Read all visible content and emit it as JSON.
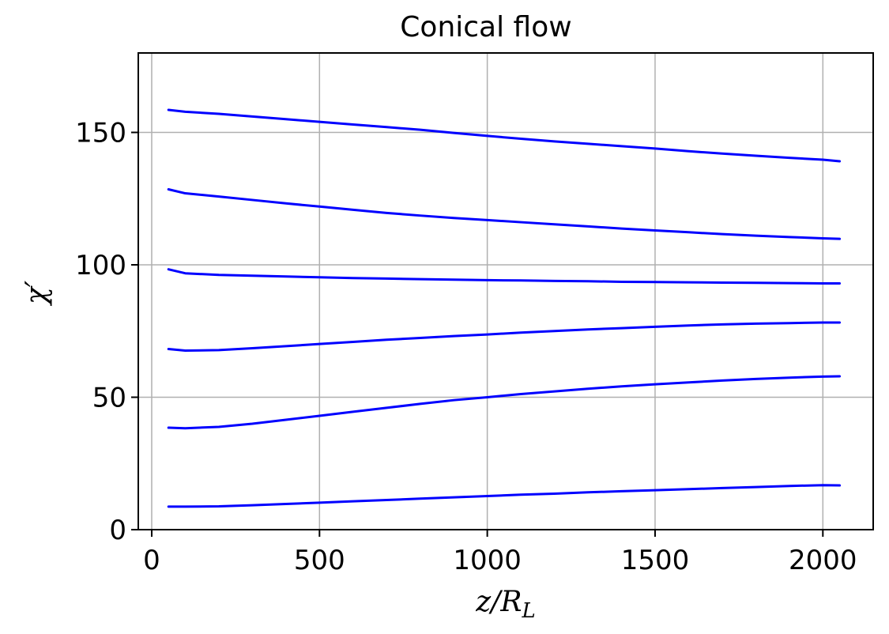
{
  "chart_data": {
    "type": "line",
    "title": "Conical flow",
    "xlabel": {
      "base": "z/R",
      "sub": "L"
    },
    "ylabel": "χ′",
    "xlim": [
      -40,
      2150
    ],
    "ylim": [
      0,
      180
    ],
    "xticks": [
      "0",
      "500",
      "1000",
      "1500",
      "2000"
    ],
    "yticks": [
      "0",
      "50",
      "100",
      "150"
    ],
    "grid": true,
    "line_color": "#0000ff",
    "series": [
      {
        "x": [
          50,
          100,
          200,
          300,
          400,
          500,
          600,
          700,
          800,
          900,
          1000,
          1100,
          1200,
          1300,
          1400,
          1500,
          1600,
          1700,
          1800,
          1900,
          2000,
          2050
        ],
        "y": [
          158.5,
          157.8,
          157.0,
          156.0,
          155.0,
          154.0,
          153.0,
          152.0,
          151.0,
          149.8,
          148.7,
          147.6,
          146.6,
          145.7,
          144.8,
          143.9,
          142.9,
          142.0,
          141.2,
          140.4,
          139.7,
          139.1
        ]
      },
      {
        "x": [
          50,
          100,
          200,
          300,
          400,
          500,
          600,
          700,
          800,
          900,
          1000,
          1100,
          1200,
          1300,
          1400,
          1500,
          1600,
          1700,
          1800,
          1900,
          2000,
          2050
        ],
        "y": [
          128.5,
          127.0,
          125.8,
          124.5,
          123.2,
          122.0,
          120.8,
          119.6,
          118.6,
          117.7,
          116.9,
          116.1,
          115.3,
          114.5,
          113.7,
          113.0,
          112.3,
          111.6,
          111.0,
          110.5,
          110.0,
          109.8
        ]
      },
      {
        "x": [
          50,
          100,
          200,
          300,
          400,
          500,
          600,
          700,
          800,
          900,
          1000,
          1100,
          1200,
          1300,
          1400,
          1500,
          1600,
          1700,
          1800,
          1900,
          2000,
          2050
        ],
        "y": [
          98.3,
          96.8,
          96.2,
          95.9,
          95.6,
          95.3,
          95.0,
          94.8,
          94.6,
          94.4,
          94.2,
          94.1,
          93.9,
          93.8,
          93.6,
          93.5,
          93.4,
          93.3,
          93.2,
          93.1,
          93.0,
          93.0
        ]
      },
      {
        "x": [
          50,
          100,
          200,
          300,
          400,
          500,
          600,
          700,
          800,
          900,
          1000,
          1100,
          1200,
          1300,
          1400,
          1500,
          1600,
          1700,
          1800,
          1900,
          2000,
          2050
        ],
        "y": [
          68.2,
          67.6,
          67.8,
          68.5,
          69.3,
          70.1,
          70.9,
          71.7,
          72.4,
          73.1,
          73.7,
          74.4,
          75.0,
          75.6,
          76.1,
          76.6,
          77.1,
          77.5,
          77.8,
          78.0,
          78.2,
          78.2
        ]
      },
      {
        "x": [
          50,
          100,
          200,
          300,
          400,
          500,
          600,
          700,
          800,
          900,
          1000,
          1100,
          1200,
          1300,
          1400,
          1500,
          1600,
          1700,
          1800,
          1900,
          2000,
          2050
        ],
        "y": [
          38.5,
          38.3,
          38.8,
          40.0,
          41.5,
          43.0,
          44.5,
          46.0,
          47.5,
          48.9,
          50.0,
          51.2,
          52.2,
          53.2,
          54.1,
          54.9,
          55.6,
          56.3,
          56.9,
          57.4,
          57.8,
          57.9
        ]
      },
      {
        "x": [
          50,
          100,
          200,
          300,
          400,
          500,
          600,
          700,
          800,
          900,
          1000,
          1100,
          1200,
          1300,
          1400,
          1500,
          1600,
          1700,
          1800,
          1900,
          2000,
          2050
        ],
        "y": [
          8.7,
          8.7,
          8.8,
          9.2,
          9.7,
          10.2,
          10.7,
          11.2,
          11.7,
          12.2,
          12.7,
          13.2,
          13.6,
          14.1,
          14.5,
          14.9,
          15.3,
          15.7,
          16.1,
          16.5,
          16.8,
          16.7
        ]
      }
    ]
  }
}
